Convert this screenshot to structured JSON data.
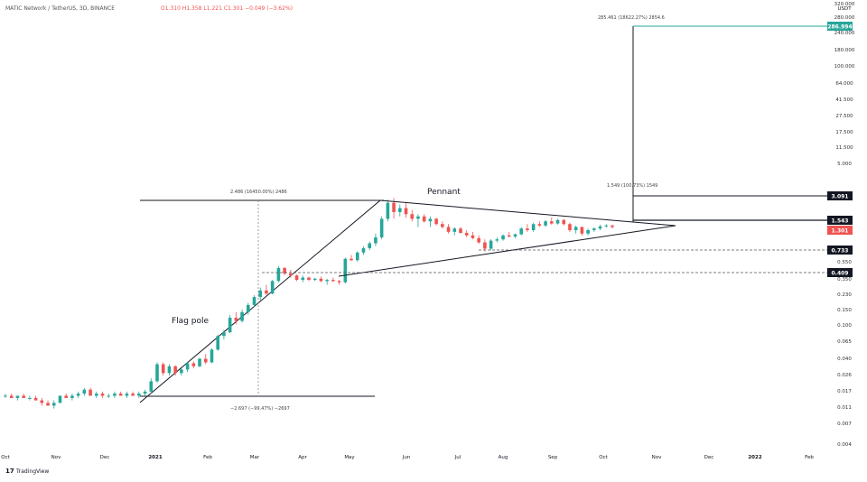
{
  "header": {
    "symbol_text": "MATIC Network / TetherUS, 3D, BINANCE",
    "ohlc_text": "O1.310  H1.358  L1.221  C1.301  −0.049 (−3.62%)"
  },
  "branding": {
    "logo_glyph": "17",
    "name": "TradingView"
  },
  "annotations": {
    "pennant_label": "Pennant",
    "flag_pole_label": "Flag pole",
    "pole_measure_label": "2.486 (16450.00%) 2486",
    "pole_low_label": "−2.697 (−99.47%) −2697",
    "target_measure_label": "1.549 (100.73%) 1549",
    "projection_label": "285.461 (18622.27%) 2854.6"
  },
  "chart_data": {
    "type": "candlestick",
    "y_scale": "log",
    "currency_label": "USDT",
    "y_ticks": [
      "320.000",
      "280.000",
      "240.000",
      "180.000",
      "100.000",
      "64.000",
      "41.500",
      "27.500",
      "17.500",
      "11.500",
      "5.000",
      "3.091",
      "1.543",
      "1.301",
      "0.733",
      "0.550",
      "0.409",
      "0.350",
      "0.230",
      "0.150",
      "0.100",
      "0.065",
      "0.040",
      "0.026",
      "0.017",
      "0.011",
      "0.007",
      "0.004"
    ],
    "x_ticks": [
      "Oct",
      "Nov",
      "Dec",
      "2021",
      "Feb",
      "Mar",
      "Apr",
      "May",
      "Jun",
      "Jul",
      "Aug",
      "Sep",
      "Oct",
      "Nov",
      "Dec",
      "2022",
      "Feb"
    ],
    "price_tags": [
      {
        "label": "286.994",
        "color": "#26a69a"
      },
      {
        "label": "3.091",
        "color": "#131722"
      },
      {
        "label": "1.543",
        "color": "#131722"
      },
      {
        "label": "1.301",
        "color": "#ef5350"
      },
      {
        "label": "0.733",
        "color": "#131722"
      },
      {
        "label": "0.409",
        "color": "#131722"
      }
    ],
    "colors": {
      "up": "#26a69a",
      "down": "#ef5350",
      "line": "#131722"
    },
    "ohlc": [
      [
        0.018,
        0.019,
        0.017,
        0.018
      ],
      [
        0.018,
        0.019,
        0.017,
        0.017
      ],
      [
        0.017,
        0.018,
        0.016,
        0.018
      ],
      [
        0.018,
        0.019,
        0.017,
        0.017
      ],
      [
        0.017,
        0.018,
        0.016,
        0.017
      ],
      [
        0.017,
        0.018,
        0.016,
        0.016
      ],
      [
        0.016,
        0.017,
        0.014,
        0.015
      ],
      [
        0.015,
        0.016,
        0.014,
        0.014
      ],
      [
        0.014,
        0.016,
        0.013,
        0.015
      ],
      [
        0.015,
        0.018,
        0.015,
        0.018
      ],
      [
        0.018,
        0.019,
        0.017,
        0.017
      ],
      [
        0.017,
        0.019,
        0.016,
        0.018
      ],
      [
        0.018,
        0.02,
        0.017,
        0.019
      ],
      [
        0.019,
        0.022,
        0.018,
        0.021
      ],
      [
        0.021,
        0.022,
        0.018,
        0.018
      ],
      [
        0.018,
        0.02,
        0.017,
        0.019
      ],
      [
        0.019,
        0.02,
        0.017,
        0.018
      ],
      [
        0.018,
        0.019,
        0.017,
        0.018
      ],
      [
        0.018,
        0.02,
        0.017,
        0.019
      ],
      [
        0.019,
        0.02,
        0.018,
        0.018
      ],
      [
        0.018,
        0.02,
        0.017,
        0.019
      ],
      [
        0.019,
        0.02,
        0.018,
        0.018
      ],
      [
        0.018,
        0.02,
        0.017,
        0.019
      ],
      [
        0.019,
        0.021,
        0.018,
        0.02
      ],
      [
        0.02,
        0.028,
        0.019,
        0.026
      ],
      [
        0.026,
        0.042,
        0.025,
        0.04
      ],
      [
        0.04,
        0.042,
        0.03,
        0.032
      ],
      [
        0.032,
        0.04,
        0.03,
        0.038
      ],
      [
        0.038,
        0.039,
        0.03,
        0.032
      ],
      [
        0.032,
        0.036,
        0.03,
        0.035
      ],
      [
        0.035,
        0.042,
        0.033,
        0.041
      ],
      [
        0.041,
        0.043,
        0.036,
        0.038
      ],
      [
        0.038,
        0.047,
        0.037,
        0.046
      ],
      [
        0.046,
        0.052,
        0.04,
        0.042
      ],
      [
        0.042,
        0.06,
        0.041,
        0.058
      ],
      [
        0.058,
        0.085,
        0.056,
        0.082
      ],
      [
        0.082,
        0.095,
        0.075,
        0.09
      ],
      [
        0.09,
        0.14,
        0.088,
        0.13
      ],
      [
        0.13,
        0.15,
        0.11,
        0.12
      ],
      [
        0.12,
        0.16,
        0.115,
        0.15
      ],
      [
        0.15,
        0.19,
        0.14,
        0.18
      ],
      [
        0.18,
        0.23,
        0.17,
        0.22
      ],
      [
        0.22,
        0.28,
        0.2,
        0.26
      ],
      [
        0.26,
        0.3,
        0.23,
        0.24
      ],
      [
        0.24,
        0.34,
        0.235,
        0.33
      ],
      [
        0.33,
        0.48,
        0.32,
        0.46
      ],
      [
        0.46,
        0.47,
        0.38,
        0.4
      ],
      [
        0.4,
        0.44,
        0.36,
        0.38
      ],
      [
        0.38,
        0.39,
        0.33,
        0.34
      ],
      [
        0.34,
        0.38,
        0.32,
        0.36
      ],
      [
        0.36,
        0.37,
        0.33,
        0.34
      ],
      [
        0.34,
        0.36,
        0.33,
        0.35
      ],
      [
        0.35,
        0.37,
        0.32,
        0.33
      ],
      [
        0.33,
        0.35,
        0.3,
        0.34
      ],
      [
        0.34,
        0.36,
        0.32,
        0.33
      ],
      [
        0.33,
        0.34,
        0.3,
        0.32
      ],
      [
        0.32,
        0.6,
        0.31,
        0.58
      ],
      [
        0.58,
        0.64,
        0.55,
        0.56
      ],
      [
        0.56,
        0.7,
        0.54,
        0.68
      ],
      [
        0.68,
        0.8,
        0.64,
        0.76
      ],
      [
        0.76,
        0.9,
        0.72,
        0.86
      ],
      [
        0.86,
        1.1,
        0.8,
        1.0
      ],
      [
        1.0,
        1.7,
        0.95,
        1.6
      ],
      [
        1.6,
        2.6,
        1.5,
        2.4
      ],
      [
        2.4,
        2.7,
        1.6,
        1.9
      ],
      [
        1.9,
        2.3,
        1.7,
        2.1
      ],
      [
        2.1,
        2.4,
        1.65,
        1.8
      ],
      [
        1.8,
        2.0,
        1.5,
        1.6
      ],
      [
        1.6,
        1.8,
        1.3,
        1.7
      ],
      [
        1.7,
        1.8,
        1.45,
        1.5
      ],
      [
        1.5,
        1.7,
        1.3,
        1.6
      ],
      [
        1.6,
        1.65,
        1.35,
        1.4
      ],
      [
        1.4,
        1.5,
        1.25,
        1.3
      ],
      [
        1.3,
        1.4,
        1.1,
        1.15
      ],
      [
        1.15,
        1.3,
        1.05,
        1.25
      ],
      [
        1.25,
        1.3,
        1.1,
        1.12
      ],
      [
        1.12,
        1.2,
        1.0,
        1.05
      ],
      [
        1.05,
        1.15,
        0.95,
        0.98
      ],
      [
        0.98,
        1.05,
        0.85,
        0.88
      ],
      [
        0.88,
        0.95,
        0.7,
        0.75
      ],
      [
        0.75,
        0.95,
        0.72,
        0.92
      ],
      [
        0.92,
        1.0,
        0.88,
        0.95
      ],
      [
        0.95,
        1.08,
        0.92,
        1.05
      ],
      [
        1.05,
        1.15,
        1.0,
        1.02
      ],
      [
        1.02,
        1.1,
        0.98,
        1.08
      ],
      [
        1.08,
        1.3,
        1.05,
        1.25
      ],
      [
        1.25,
        1.4,
        1.15,
        1.2
      ],
      [
        1.2,
        1.45,
        1.15,
        1.4
      ],
      [
        1.4,
        1.5,
        1.3,
        1.35
      ],
      [
        1.35,
        1.55,
        1.3,
        1.5
      ],
      [
        1.5,
        1.65,
        1.38,
        1.42
      ],
      [
        1.42,
        1.6,
        1.38,
        1.55
      ],
      [
        1.55,
        1.6,
        1.35,
        1.4
      ],
      [
        1.4,
        1.45,
        1.15,
        1.2
      ],
      [
        1.2,
        1.35,
        1.1,
        1.3
      ],
      [
        1.3,
        1.32,
        1.05,
        1.1
      ],
      [
        1.1,
        1.25,
        1.05,
        1.2
      ],
      [
        1.2,
        1.3,
        1.15,
        1.25
      ],
      [
        1.25,
        1.38,
        1.2,
        1.32
      ],
      [
        1.32,
        1.4,
        1.28,
        1.35
      ],
      [
        1.35,
        1.38,
        1.25,
        1.301
      ]
    ]
  }
}
